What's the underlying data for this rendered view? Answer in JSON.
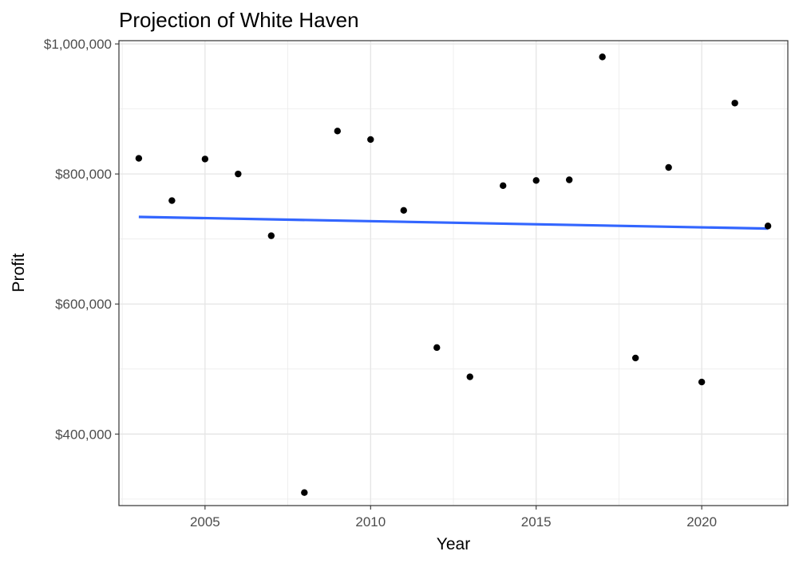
{
  "chart_data": {
    "type": "scatter",
    "title": "Projection of White Haven",
    "xlabel": "Year",
    "ylabel": "Profit",
    "xlim": [
      2002.4,
      2022.6
    ],
    "ylim": [
      290000,
      1005000
    ],
    "x_ticks": [
      2005,
      2010,
      2015,
      2020
    ],
    "x_tick_labels": [
      "2005",
      "2010",
      "2015",
      "2020"
    ],
    "y_ticks": [
      400000,
      600000,
      800000,
      1000000
    ],
    "y_tick_labels": [
      "$400,000",
      "$600,000",
      "$800,000",
      "$1,000,000"
    ],
    "grid": true,
    "legend": "none",
    "point_color": "#000000",
    "trend_color": "#3366ff",
    "series": [
      {
        "type": "points",
        "x": [
          2003,
          2004,
          2005,
          2006,
          2007,
          2008,
          2009,
          2010,
          2011,
          2012,
          2013,
          2014,
          2015,
          2016,
          2017,
          2018,
          2019,
          2020,
          2021,
          2022
        ],
        "y": [
          824000,
          759000,
          823000,
          800000,
          705000,
          310000,
          866000,
          853000,
          744000,
          533000,
          488000,
          782000,
          790000,
          791000,
          980000,
          517000,
          810000,
          480000,
          909000,
          720000
        ]
      },
      {
        "type": "trend",
        "x": [
          2003,
          2022
        ],
        "y": [
          734000,
          716000
        ]
      }
    ]
  }
}
